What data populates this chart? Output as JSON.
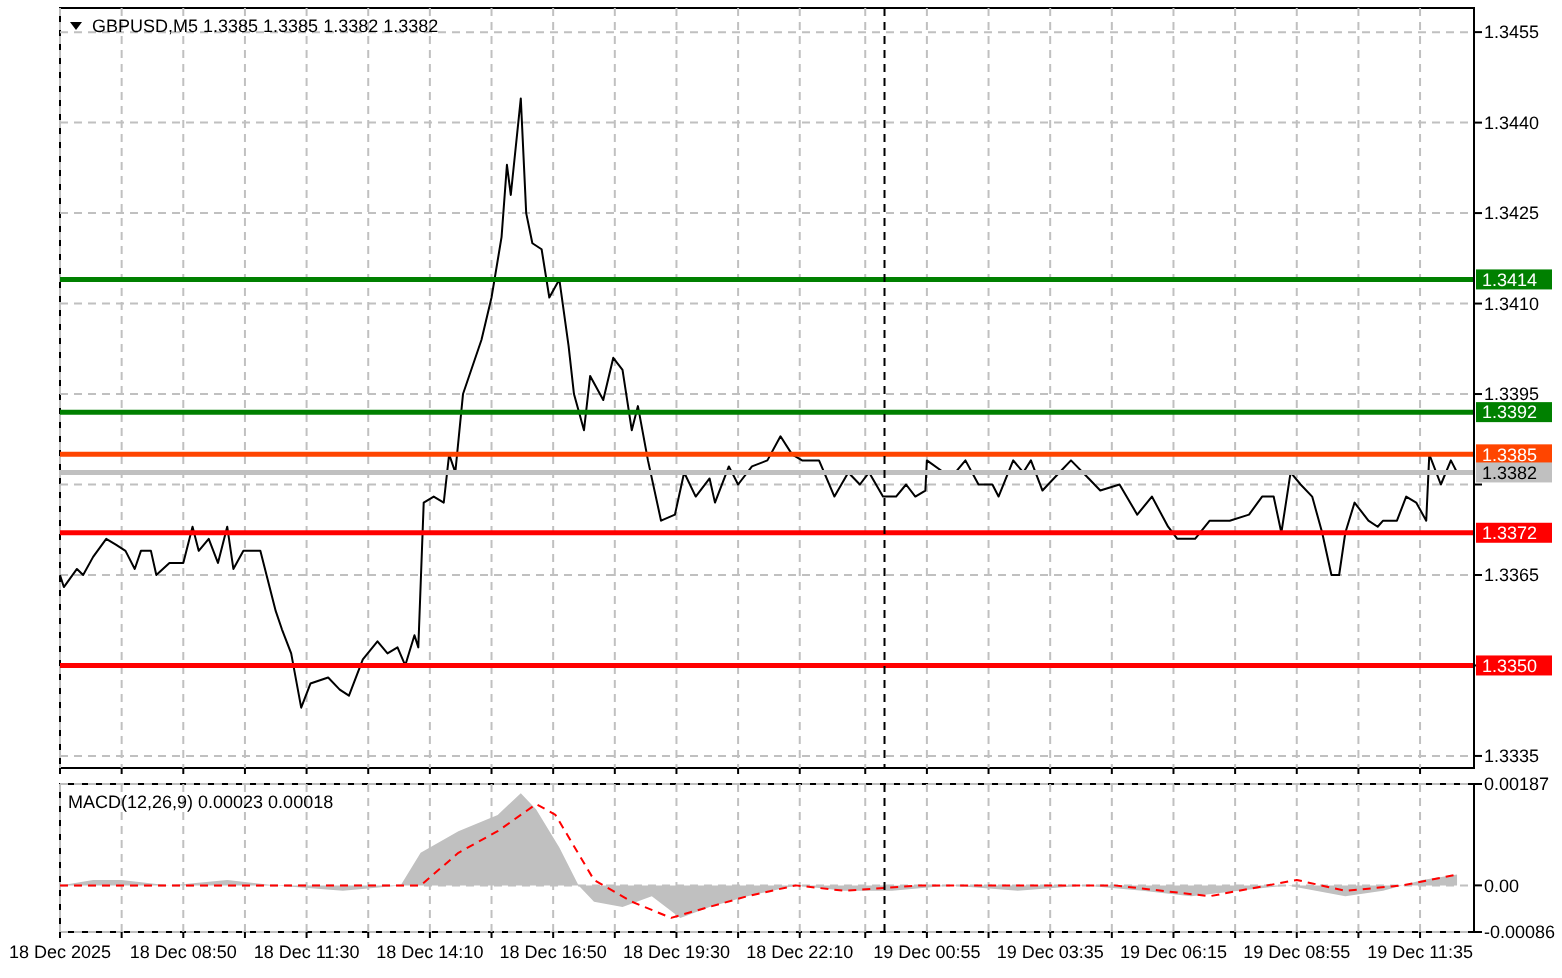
{
  "chart_data": [
    {
      "type": "line",
      "title": "GBPUSD,M5  1.3385 1.3385 1.3382 1.3382",
      "grid": true,
      "tick_labels": "y",
      "xlim": [
        "2025-12-18T06:10",
        "2025-12-19T12:45"
      ],
      "ylim": [
        1.3333,
        1.3459
      ],
      "xticks": [
        {
          "value": "2025-12-18T06:10",
          "label": null
        },
        {
          "value": "2025-12-18T07:30",
          "label": null
        },
        {
          "value": "2025-12-18T08:50",
          "label": null
        },
        {
          "value": "2025-12-18T10:10",
          "label": null
        },
        {
          "value": "2025-12-18T11:30",
          "label": null
        },
        {
          "value": "2025-12-18T12:50",
          "label": null
        },
        {
          "value": "2025-12-18T14:10",
          "label": null
        },
        {
          "value": "2025-12-18T15:30",
          "label": null
        },
        {
          "value": "2025-12-18T16:50",
          "label": null
        },
        {
          "value": "2025-12-18T18:10",
          "label": null
        },
        {
          "value": "2025-12-18T19:30",
          "label": null
        },
        {
          "value": "2025-12-18T20:50",
          "label": null
        },
        {
          "value": "2025-12-18T22:10",
          "label": null
        },
        {
          "value": "2025-12-18T23:35",
          "label": null
        },
        {
          "value": "2025-12-19T00:55",
          "label": null
        },
        {
          "value": "2025-12-19T02:15",
          "label": null
        },
        {
          "value": "2025-12-19T03:35",
          "label": null
        },
        {
          "value": "2025-12-19T04:55",
          "label": null
        },
        {
          "value": "2025-12-19T06:15",
          "label": null
        },
        {
          "value": "2025-12-19T07:35",
          "label": null
        },
        {
          "value": "2025-12-19T08:55",
          "label": null
        },
        {
          "value": "2025-12-19T10:15",
          "label": null
        },
        {
          "value": "2025-12-19T11:35",
          "label": null
        }
      ],
      "yticks": [
        1.3335,
        {
          "value": 1.335,
          "label": null
        },
        1.3365,
        {
          "value": 1.338,
          "label": null
        },
        1.3395,
        {
          "value": 1.341,
          "label": "1.3410"
        },
        1.3425,
        {
          "value": 1.344,
          "label": "1.3440"
        },
        1.3455
      ],
      "ref_lines": [
        {
          "axis": "y",
          "value": 1.3414,
          "label": "1.3414",
          "color": "#008000"
        },
        {
          "axis": "y",
          "value": 1.3392,
          "label": "1.3392",
          "color": "#008000"
        },
        {
          "axis": "y",
          "value": 1.3385,
          "label": "1.3385",
          "color": "#ff4500"
        },
        {
          "axis": "y",
          "value": 1.3382,
          "label": "1.3382",
          "color": "#c0c0c0"
        },
        {
          "axis": "y",
          "value": 1.3372,
          "label": "1.3372",
          "color": "#ff0000"
        },
        {
          "axis": "y",
          "value": 1.335,
          "label": "1.3350",
          "color": "#ff0000"
        },
        {
          "axis": "x",
          "value": "2025-12-19T00:00",
          "color": "#000000",
          "line_style": "dashed"
        }
      ],
      "series": [
        {
          "color": "#000000",
          "x": [
            "2025-12-18T06:10",
            "2025-12-18T06:15",
            "2025-12-18T06:32",
            "2025-12-18T06:40",
            "2025-12-18T06:53",
            "2025-12-18T07:10",
            "2025-12-18T07:23",
            "2025-12-18T07:35",
            "2025-12-18T07:47",
            "2025-12-18T07:55",
            "2025-12-18T08:08",
            "2025-12-18T08:15",
            "2025-12-18T08:32",
            "2025-12-18T08:50",
            "2025-12-18T09:02",
            "2025-12-18T09:10",
            "2025-12-18T09:23",
            "2025-12-18T09:35",
            "2025-12-18T09:47",
            "2025-12-18T09:55",
            "2025-12-18T10:08",
            "2025-12-18T10:30",
            "2025-12-18T10:38",
            "2025-12-18T10:50",
            "2025-12-18T10:58",
            "2025-12-18T11:10",
            "2025-12-18T11:23",
            "2025-12-18T11:35",
            "2025-12-18T11:58",
            "2025-12-18T12:13",
            "2025-12-18T12:25",
            "2025-12-18T12:43",
            "2025-12-18T13:02",
            "2025-12-18T13:15",
            "2025-12-18T13:28",
            "2025-12-18T13:38",
            "2025-12-18T13:50",
            "2025-12-18T13:55",
            "2025-12-18T14:02",
            "2025-12-18T14:15",
            "2025-12-18T14:28",
            "2025-12-18T14:35",
            "2025-12-18T14:43",
            "2025-12-18T14:53",
            "2025-12-18T15:17",
            "2025-12-18T15:30",
            "2025-12-18T15:43",
            "2025-12-18T15:50",
            "2025-12-18T15:55",
            "2025-12-18T16:08",
            "2025-12-18T16:15",
            "2025-12-18T16:23",
            "2025-12-18T16:35",
            "2025-12-18T16:45",
            "2025-12-18T16:58",
            "2025-12-18T17:10",
            "2025-12-18T17:17",
            "2025-12-18T17:30",
            "2025-12-18T17:38",
            "2025-12-18T17:55",
            "2025-12-18T18:08",
            "2025-12-18T18:20",
            "2025-12-18T18:32",
            "2025-12-18T18:40",
            "2025-12-18T18:53",
            "2025-12-18T19:10",
            "2025-12-18T19:28",
            "2025-12-18T19:40",
            "2025-12-18T19:55",
            "2025-12-18T20:13",
            "2025-12-18T20:20",
            "2025-12-18T20:38",
            "2025-12-18T20:50",
            "2025-12-18T21:08",
            "2025-12-18T21:28",
            "2025-12-18T21:45",
            "2025-12-18T22:00",
            "2025-12-18T22:13",
            "2025-12-18T22:35",
            "2025-12-18T22:55",
            "2025-12-18T23:13",
            "2025-12-18T23:28",
            "2025-12-18T23:40",
            "2025-12-18T23:58",
            "2025-12-19T00:15",
            "2025-12-19T00:28",
            "2025-12-19T00:40",
            "2025-12-19T00:53",
            "2025-12-19T00:55",
            "2025-12-19T01:17",
            "2025-12-19T01:32",
            "2025-12-19T01:45",
            "2025-12-19T02:02",
            "2025-12-19T02:20",
            "2025-12-19T02:28",
            "2025-12-19T02:47",
            "2025-12-19T03:00",
            "2025-12-19T03:10",
            "2025-12-19T03:25",
            "2025-12-19T03:47",
            "2025-12-19T04:02",
            "2025-12-19T04:25",
            "2025-12-19T04:40",
            "2025-12-19T05:05",
            "2025-12-19T05:28",
            "2025-12-19T05:47",
            "2025-12-19T06:08",
            "2025-12-19T06:20",
            "2025-12-19T06:43",
            "2025-12-19T07:02",
            "2025-12-19T07:28",
            "2025-12-19T07:53",
            "2025-12-19T08:10",
            "2025-12-19T08:25",
            "2025-12-19T08:35",
            "2025-12-19T08:47",
            "2025-12-19T09:00",
            "2025-12-19T09:15",
            "2025-12-19T09:28",
            "2025-12-19T09:40",
            "2025-12-19T09:50",
            "2025-12-19T09:58",
            "2025-12-19T10:10",
            "2025-12-19T10:28",
            "2025-12-19T10:40",
            "2025-12-19T10:47",
            "2025-12-19T11:05",
            "2025-12-19T11:17",
            "2025-12-19T11:30",
            "2025-12-19T11:43",
            "2025-12-19T11:47",
            "2025-12-19T12:02",
            "2025-12-19T12:15",
            "2025-12-19T12:23"
          ],
          "values": [
            1.3365,
            1.3363,
            1.3366,
            1.3365,
            1.3368,
            1.3371,
            1.337,
            1.3369,
            1.3366,
            1.3369,
            1.3369,
            1.3365,
            1.3367,
            1.3367,
            1.3373,
            1.3369,
            1.3371,
            1.3367,
            1.3373,
            1.3366,
            1.3369,
            1.3369,
            1.3365,
            1.3359,
            1.3356,
            1.3352,
            1.3343,
            1.3347,
            1.3348,
            1.3346,
            1.3345,
            1.3351,
            1.3354,
            1.3352,
            1.3353,
            1.335,
            1.3355,
            1.3353,
            1.3377,
            1.3378,
            1.3377,
            1.3385,
            1.3382,
            1.3395,
            1.3404,
            1.3411,
            1.3421,
            1.3433,
            1.3428,
            1.3444,
            1.3425,
            1.342,
            1.3419,
            1.3411,
            1.3414,
            1.3403,
            1.3395,
            1.3389,
            1.3398,
            1.3394,
            1.3401,
            1.3399,
            1.3389,
            1.3393,
            1.3384,
            1.3374,
            1.3375,
            1.3382,
            1.3378,
            1.3381,
            1.3377,
            1.3383,
            1.338,
            1.3383,
            1.3384,
            1.3388,
            1.3385,
            1.3384,
            1.3384,
            1.3378,
            1.3382,
            1.338,
            1.3382,
            1.3378,
            1.3378,
            1.338,
            1.3378,
            1.3379,
            1.3384,
            1.3382,
            1.3382,
            1.3384,
            1.338,
            1.338,
            1.3378,
            1.3384,
            1.3382,
            1.3384,
            1.3379,
            1.3382,
            1.3384,
            1.3381,
            1.3379,
            1.338,
            1.3375,
            1.3378,
            1.3373,
            1.3371,
            1.3371,
            1.3374,
            1.3374,
            1.3375,
            1.3378,
            1.3378,
            1.3372,
            1.3382,
            1.338,
            1.3378,
            1.3372,
            1.3365,
            1.3365,
            1.3372,
            1.3377,
            1.3374,
            1.3373,
            1.3374,
            1.3374,
            1.3378,
            1.3377,
            1.3374,
            1.3385,
            1.338,
            1.3384,
            1.3382
          ]
        }
      ]
    },
    {
      "type": "line",
      "title": "MACD(12,26,9) 0.00023 0.00018",
      "grid": true,
      "xlim": [
        "2025-12-18T06:10",
        "2025-12-19T12:45"
      ],
      "ylim": [
        -0.00086,
        0.00187
      ],
      "xticks": [
        {
          "value": "2025-12-18T06:10",
          "label": "18 Dec 2025"
        },
        {
          "value": "2025-12-18T07:30",
          "label": null
        },
        {
          "value": "2025-12-18T08:50",
          "label": "18 Dec 08:50"
        },
        {
          "value": "2025-12-18T10:10",
          "label": null
        },
        {
          "value": "2025-12-18T11:30",
          "label": "18 Dec 11:30"
        },
        {
          "value": "2025-12-18T12:50",
          "label": null
        },
        {
          "value": "2025-12-18T14:10",
          "label": "18 Dec 14:10"
        },
        {
          "value": "2025-12-18T15:30",
          "label": null
        },
        {
          "value": "2025-12-18T16:50",
          "label": "18 Dec 16:50"
        },
        {
          "value": "2025-12-18T18:10",
          "label": null
        },
        {
          "value": "2025-12-18T19:30",
          "label": "18 Dec 19:30"
        },
        {
          "value": "2025-12-18T20:50",
          "label": null
        },
        {
          "value": "2025-12-18T22:10",
          "label": "18 Dec 22:10"
        },
        {
          "value": "2025-12-18T23:35",
          "label": null
        },
        {
          "value": "2025-12-19T00:55",
          "label": "19 Dec 00:55"
        },
        {
          "value": "2025-12-19T02:15",
          "label": null
        },
        {
          "value": "2025-12-19T03:35",
          "label": "19 Dec 03:35"
        },
        {
          "value": "2025-12-19T04:55",
          "label": null
        },
        {
          "value": "2025-12-19T06:15",
          "label": "19 Dec 06:15"
        },
        {
          "value": "2025-12-19T07:35",
          "label": null
        },
        {
          "value": "2025-12-19T08:55",
          "label": "19 Dec 08:55"
        },
        {
          "value": "2025-12-19T10:15",
          "label": null
        },
        {
          "value": "2025-12-19T11:35",
          "label": "19 Dec 11:35"
        }
      ],
      "yticks": [
        -0.00086,
        {
          "value": 0,
          "label": "0.00"
        },
        0.00187
      ],
      "ref_lines": [
        {
          "axis": "x",
          "value": "2025-12-19T00:00",
          "color": "#000000",
          "line_style": "dashed"
        }
      ],
      "series": [
        {
          "type": "area",
          "color": "#c0c0c0",
          "x": [
            "2025-12-18T06:10",
            "2025-12-18T06:53",
            "2025-12-18T07:30",
            "2025-12-18T08:32",
            "2025-12-18T09:47",
            "2025-12-18T10:50",
            "2025-12-18T12:17",
            "2025-12-18T13:32",
            "2025-12-18T13:58",
            "2025-12-18T14:47",
            "2025-12-18T15:38",
            "2025-12-18T16:08",
            "2025-12-18T16:28",
            "2025-12-18T16:58",
            "2025-12-18T17:23",
            "2025-12-18T17:43",
            "2025-12-18T18:20",
            "2025-12-18T18:58",
            "2025-12-18T19:35",
            "2025-12-18T20:13",
            "2025-12-18T21:02",
            "2025-12-18T22:05",
            "2025-12-18T23:08",
            "2025-12-19T00:10",
            "2025-12-19T01:25",
            "2025-12-19T02:53",
            "2025-12-19T04:20",
            "2025-12-19T05:35",
            "2025-12-19T06:38",
            "2025-12-19T07:40",
            "2025-12-19T08:43",
            "2025-12-19T09:58",
            "2025-12-19T10:47",
            "2025-12-19T11:38",
            "2025-12-19T12:23"
          ],
          "values": [
            0,
            0.0001,
            0.0001,
            0,
            0.0001,
            0,
            -0.0001,
            0,
            0.0006,
            0.001,
            0.0013,
            0.0017,
            0.0014,
            0.0007,
            0,
            -0.0003,
            -0.0004,
            -0.0002,
            -0.0006,
            -0.0004,
            -0.0002,
            0,
            -0.0001,
            -0.0001,
            0,
            -0.0001,
            0,
            -0.0001,
            -0.0002,
            -0.0001,
            0,
            -0.0002,
            -0.0001,
            0.0001,
            0.0002
          ]
        },
        {
          "color": "#ff0000",
          "line_style": "dashed",
          "x": [
            "2025-12-18T06:10",
            "2025-12-18T07:43",
            "2025-12-18T09:47",
            "2025-12-18T11:02",
            "2025-12-18T12:17",
            "2025-12-18T13:58",
            "2025-12-18T14:47",
            "2025-12-18T15:38",
            "2025-12-18T16:28",
            "2025-12-18T16:53",
            "2025-12-18T17:43",
            "2025-12-18T18:32",
            "2025-12-18T19:23",
            "2025-12-18T19:47",
            "2025-12-18T21:02",
            "2025-12-18T22:05",
            "2025-12-18T23:08",
            "2025-12-19T00:47",
            "2025-12-19T02:53",
            "2025-12-19T04:58",
            "2025-12-19T07:02",
            "2025-12-19T08:55",
            "2025-12-19T09:58",
            "2025-12-19T11:13",
            "2025-12-19T12:23"
          ],
          "values": [
            0,
            0,
            0,
            0,
            0,
            0,
            0.0006,
            0.001,
            0.0015,
            0.0013,
            0.0001,
            -0.0003,
            -0.0006,
            -0.0005,
            -0.0002,
            0,
            -0.0001,
            0,
            0,
            0,
            -0.0002,
            0.0001,
            -0.0001,
            0,
            0.0002
          ]
        }
      ]
    }
  ]
}
